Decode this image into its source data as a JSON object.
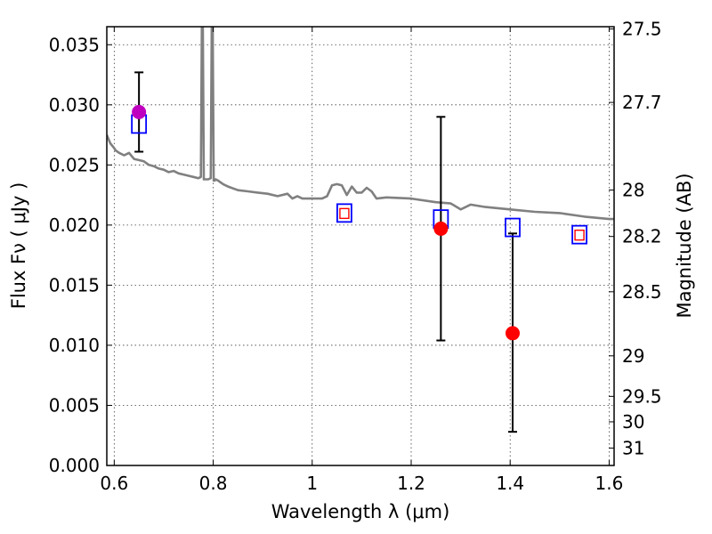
{
  "chart_data": {
    "type": "scatter",
    "xlabel": "Wavelength  λ (μm)",
    "ylabel": "Flux  Fν  ( μJy )",
    "ylabel_right": "Magnitude (AB)",
    "xlim": [
      0.585,
      1.61
    ],
    "ylim": [
      0.0,
      0.0365
    ],
    "x_ticks": [
      0.6,
      0.8,
      1.0,
      1.2,
      1.4,
      1.6
    ],
    "x_tick_labels": [
      "0.6",
      "0.8",
      "1",
      "1.2",
      "1.4",
      "1.6"
    ],
    "y_ticks": [
      0.0,
      0.005,
      0.01,
      0.015,
      0.02,
      0.025,
      0.03,
      0.035
    ],
    "y_tick_labels": [
      "0.000",
      "0.005",
      "0.010",
      "0.015",
      "0.020",
      "0.025",
      "0.030",
      "0.035"
    ],
    "mag_ticks": [
      {
        "label": "27.5",
        "flux": 0.03631
      },
      {
        "label": "27.7",
        "flux": 0.0302
      },
      {
        "label": "28",
        "flux": 0.02291
      },
      {
        "label": "28.2",
        "flux": 0.01905
      },
      {
        "label": "28.5",
        "flux": 0.01445
      },
      {
        "label": "29",
        "flux": 0.00912
      },
      {
        "label": "29.5",
        "flux": 0.00575
      },
      {
        "label": "30",
        "flux": 0.00363
      },
      {
        "label": "31",
        "flux": 0.00145
      }
    ],
    "grid": true,
    "colors": {
      "model": "#808080",
      "observed": "#ff0000",
      "observed_special": "#bf00bf",
      "model_band_box": "#0000ff",
      "model_band_inner": "#ff0000",
      "errorbar": "#000000"
    },
    "model_spectrum": {
      "x": [
        0.585,
        0.592,
        0.6,
        0.603,
        0.61,
        0.62,
        0.63,
        0.64,
        0.65,
        0.66,
        0.67,
        0.68,
        0.69,
        0.7,
        0.71,
        0.72,
        0.73,
        0.74,
        0.75,
        0.76,
        0.77,
        0.775,
        0.777,
        0.779,
        0.781,
        0.783,
        0.79,
        0.795,
        0.797,
        0.799,
        0.801,
        0.803,
        0.805,
        0.81,
        0.82,
        0.83,
        0.85,
        0.87,
        0.89,
        0.91,
        0.93,
        0.95,
        0.96,
        0.97,
        0.98,
        1.0,
        1.02,
        1.03,
        1.04,
        1.05,
        1.06,
        1.07,
        1.08,
        1.09,
        1.1,
        1.11,
        1.12,
        1.13,
        1.15,
        1.2,
        1.25,
        1.28,
        1.3,
        1.32,
        1.35,
        1.4,
        1.45,
        1.5,
        1.55,
        1.6,
        1.61
      ],
      "y": [
        0.0275,
        0.0268,
        0.0264,
        0.0262,
        0.026,
        0.0258,
        0.026,
        0.0255,
        0.0254,
        0.0253,
        0.025,
        0.0249,
        0.0247,
        0.0246,
        0.0244,
        0.0245,
        0.0243,
        0.0242,
        0.0241,
        0.024,
        0.0239,
        0.024,
        0.0365,
        0.0365,
        0.0238,
        0.0238,
        0.0238,
        0.0239,
        0.0365,
        0.0365,
        0.0237,
        0.0237,
        0.0238,
        0.0237,
        0.0234,
        0.0232,
        0.0229,
        0.0228,
        0.0227,
        0.0226,
        0.0224,
        0.0226,
        0.0222,
        0.0224,
        0.0222,
        0.0222,
        0.0222,
        0.0224,
        0.0233,
        0.0234,
        0.0233,
        0.0225,
        0.0232,
        0.0227,
        0.0227,
        0.0231,
        0.0228,
        0.0222,
        0.0223,
        0.0222,
        0.0219,
        0.0218,
        0.0213,
        0.0217,
        0.0215,
        0.0213,
        0.0211,
        0.021,
        0.0207,
        0.0205,
        0.0205
      ]
    },
    "model_bands": [
      {
        "x": 0.65,
        "y": 0.0284,
        "inner": false
      },
      {
        "x": 1.065,
        "y": 0.021,
        "inner": true
      },
      {
        "x": 1.26,
        "y": 0.0205,
        "inner": false
      },
      {
        "x": 1.405,
        "y": 0.0198,
        "inner": false
      },
      {
        "x": 1.54,
        "y": 0.0192,
        "inner": true
      }
    ],
    "observed": [
      {
        "x": 0.65,
        "y": 0.0294,
        "yerr_low": 0.0261,
        "yerr_high": 0.0327,
        "special": true
      },
      {
        "x": 1.26,
        "y": 0.0197,
        "yerr_low": 0.0104,
        "yerr_high": 0.029,
        "special": false
      },
      {
        "x": 1.405,
        "y": 0.011,
        "yerr_low": 0.0028,
        "yerr_high": 0.0193,
        "special": false
      }
    ]
  }
}
